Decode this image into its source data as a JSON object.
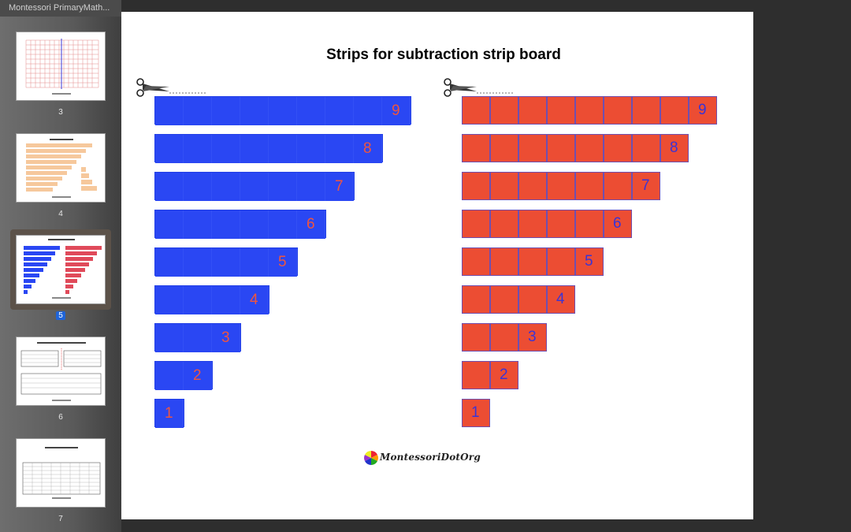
{
  "window": {
    "doc_title": "Montessori PrimaryMath..."
  },
  "sidebar": {
    "thumbnails": [
      {
        "num": "3"
      },
      {
        "num": "4"
      },
      {
        "num": "5",
        "active": true
      },
      {
        "num": "6"
      },
      {
        "num": "7"
      }
    ]
  },
  "page": {
    "title": "Strips for subtraction strip board",
    "blue_strips": [
      {
        "length": 9,
        "label": "9"
      },
      {
        "length": 8,
        "label": "8"
      },
      {
        "length": 7,
        "label": "7"
      },
      {
        "length": 6,
        "label": "6"
      },
      {
        "length": 5,
        "label": "5"
      },
      {
        "length": 4,
        "label": "4"
      },
      {
        "length": 3,
        "label": "3"
      },
      {
        "length": 2,
        "label": "2"
      },
      {
        "length": 1,
        "label": "1"
      }
    ],
    "red_strips": [
      {
        "length": 9,
        "label": "9"
      },
      {
        "length": 8,
        "label": "8"
      },
      {
        "length": 7,
        "label": "7"
      },
      {
        "length": 6,
        "label": "6"
      },
      {
        "length": 5,
        "label": "5"
      },
      {
        "length": 4,
        "label": "4"
      },
      {
        "length": 3,
        "label": "3"
      },
      {
        "length": 2,
        "label": "2"
      },
      {
        "length": 1,
        "label": "1"
      }
    ],
    "logo_text": "MontessoriDotOrg"
  },
  "colors": {
    "blue": "#2a47f3",
    "red": "#ec4d33",
    "blue_label": "#ee5540",
    "red_label": "#3a34d6"
  },
  "icons": {
    "scissors": "scissors-icon"
  }
}
